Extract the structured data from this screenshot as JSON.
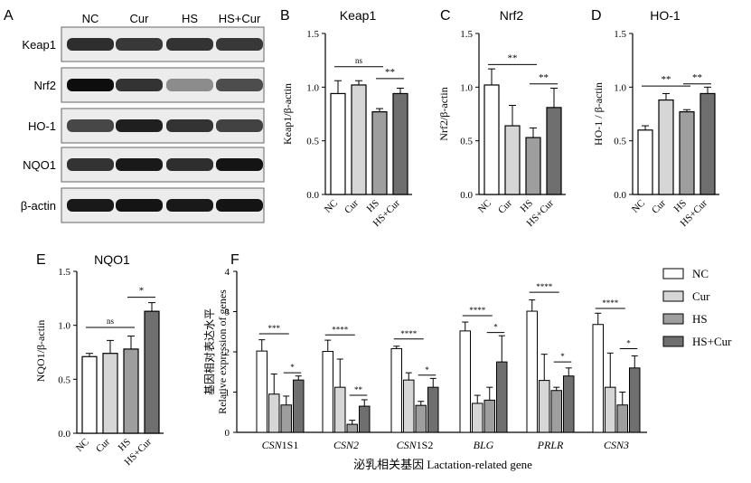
{
  "blot": {
    "panel_label": "A",
    "lanes": [
      "NC",
      "Cur",
      "HS",
      "HS+Cur"
    ],
    "proteins": [
      "Keap1",
      "Nrf2",
      "HO-1",
      "NQO1",
      "β-actin"
    ],
    "band_intensity": [
      [
        0.82,
        0.78,
        0.8,
        0.78
      ],
      [
        0.95,
        0.8,
        0.45,
        0.7
      ],
      [
        0.72,
        0.88,
        0.8,
        0.74
      ],
      [
        0.8,
        0.9,
        0.82,
        0.92
      ],
      [
        0.9,
        0.92,
        0.9,
        0.92
      ]
    ]
  },
  "colors": {
    "nc": "#ffffff",
    "cur": "#d6d6d6",
    "hs": "#9e9e9e",
    "hscur": "#6f6f6f",
    "ink": "#000000"
  },
  "chart_data": [
    {
      "panel": "B",
      "type": "bar",
      "title": "Keap1",
      "ylabel": "Keap1/β-actin",
      "categories": [
        "NC",
        "Cur",
        "HS",
        "HS+Cur"
      ],
      "values": [
        0.94,
        1.02,
        0.77,
        0.94
      ],
      "errors": [
        0.12,
        0.04,
        0.03,
        0.05
      ],
      "ylim": [
        0,
        1.5
      ],
      "yticks": [
        "0.0",
        "0.5",
        "1.0",
        "1.5"
      ],
      "annotations": [
        {
          "from": 0,
          "to": 2,
          "y": 1.19,
          "text": "ns"
        },
        {
          "from": 2,
          "to": 3,
          "y": 1.08,
          "text": "**"
        }
      ]
    },
    {
      "panel": "C",
      "type": "bar",
      "title": "Nrf2",
      "ylabel": "Nrf2/β-actin",
      "categories": [
        "NC",
        "Cur",
        "HS",
        "HS+Cur"
      ],
      "values": [
        1.02,
        0.64,
        0.53,
        0.81
      ],
      "errors": [
        0.15,
        0.19,
        0.09,
        0.18
      ],
      "ylim": [
        0,
        1.5
      ],
      "yticks": [
        "0.0",
        "0.5",
        "1.0",
        "1.5"
      ],
      "annotations": [
        {
          "from": 0,
          "to": 2,
          "y": 1.21,
          "text": "**"
        },
        {
          "from": 2,
          "to": 3,
          "y": 1.03,
          "text": "**"
        }
      ]
    },
    {
      "panel": "D",
      "type": "bar",
      "title": "HO-1",
      "ylabel": "HO-1 / β-actin",
      "categories": [
        "NC",
        "Cur",
        "HS",
        "HS+Cur"
      ],
      "values": [
        0.6,
        0.88,
        0.77,
        0.94
      ],
      "errors": [
        0.04,
        0.06,
        0.02,
        0.06
      ],
      "ylim": [
        0,
        1.5
      ],
      "yticks": [
        "0.0",
        "0.5",
        "1.0",
        "1.5"
      ],
      "annotations": [
        {
          "from": 0,
          "to": 2,
          "y": 1.01,
          "text": "**"
        },
        {
          "from": 2,
          "to": 3,
          "y": 1.03,
          "text": "**"
        }
      ]
    },
    {
      "panel": "E",
      "type": "bar",
      "title": "NQO1",
      "ylabel": "NQO1/β-actin",
      "categories": [
        "NC",
        "Cur",
        "HS",
        "HS+Cur"
      ],
      "values": [
        0.71,
        0.74,
        0.78,
        1.13
      ],
      "errors": [
        0.03,
        0.12,
        0.12,
        0.08
      ],
      "ylim": [
        0,
        1.5
      ],
      "yticks": [
        "0.0",
        "0.5",
        "1.0",
        "1.5"
      ],
      "annotations": [
        {
          "from": 0,
          "to": 2,
          "y": 0.98,
          "text": "ns"
        },
        {
          "from": 2,
          "to": 3,
          "y": 1.26,
          "text": "*"
        }
      ]
    },
    {
      "panel": "F",
      "type": "bar",
      "ylabel": "Relative expression of genes",
      "ylabel_zh": "基因相对表达水平",
      "xlabel": "泌乳相关基因 Lactation-related gene",
      "categories": [
        "CSN1S1",
        "CSN2",
        "CSN1S2",
        "BLG",
        "PRLR",
        "CSN3"
      ],
      "category_italic": [
        "CSN",
        "CSN2",
        "CSN",
        "BLG",
        "PRLR",
        "CSN3"
      ],
      "category_plain": [
        "1S1",
        "",
        "1S2",
        "",
        "",
        ""
      ],
      "ylim": [
        0,
        4
      ],
      "yticks": [
        "0",
        "1",
        "2",
        "3",
        "4"
      ],
      "series": [
        {
          "name": "NC",
          "values": [
            2.02,
            2.01,
            2.08,
            2.52,
            3.01,
            2.68
          ],
          "errors": [
            0.28,
            0.28,
            0.06,
            0.22,
            0.28,
            0.28
          ]
        },
        {
          "name": "Cur",
          "values": [
            0.95,
            1.12,
            1.3,
            0.72,
            1.29,
            1.12
          ],
          "errors": [
            0.5,
            0.7,
            0.18,
            0.2,
            0.65,
            0.85
          ]
        },
        {
          "name": "HS",
          "values": [
            0.68,
            0.2,
            0.67,
            0.8,
            1.04,
            0.68
          ],
          "errors": [
            0.22,
            0.1,
            0.1,
            0.32,
            0.08,
            0.32
          ]
        },
        {
          "name": "HS+Cur",
          "values": [
            1.3,
            0.65,
            1.12,
            1.75,
            1.4,
            1.6
          ],
          "errors": [
            0.1,
            0.16,
            0.22,
            0.65,
            0.2,
            0.3
          ]
        }
      ],
      "annotations": [
        {
          "group": 0,
          "from": 0,
          "to": 2,
          "y": 2.45,
          "text": "***"
        },
        {
          "group": 0,
          "from": 2,
          "to": 3,
          "y": 1.48,
          "text": "*"
        },
        {
          "group": 1,
          "from": 0,
          "to": 2,
          "y": 2.42,
          "text": "****"
        },
        {
          "group": 1,
          "from": 2,
          "to": 3,
          "y": 0.92,
          "text": "**"
        },
        {
          "group": 2,
          "from": 0,
          "to": 2,
          "y": 2.32,
          "text": "****"
        },
        {
          "group": 2,
          "from": 2,
          "to": 3,
          "y": 1.42,
          "text": "*"
        },
        {
          "group": 3,
          "from": 0,
          "to": 2,
          "y": 2.9,
          "text": "****"
        },
        {
          "group": 3,
          "from": 2,
          "to": 3,
          "y": 2.48,
          "text": "*"
        },
        {
          "group": 4,
          "from": 0,
          "to": 2,
          "y": 3.48,
          "text": "****"
        },
        {
          "group": 4,
          "from": 2,
          "to": 3,
          "y": 1.75,
          "text": "*"
        },
        {
          "group": 5,
          "from": 0,
          "to": 2,
          "y": 3.08,
          "text": "****"
        },
        {
          "group": 5,
          "from": 2,
          "to": 3,
          "y": 2.08,
          "text": "*"
        }
      ],
      "legend_position": "top-right"
    }
  ]
}
